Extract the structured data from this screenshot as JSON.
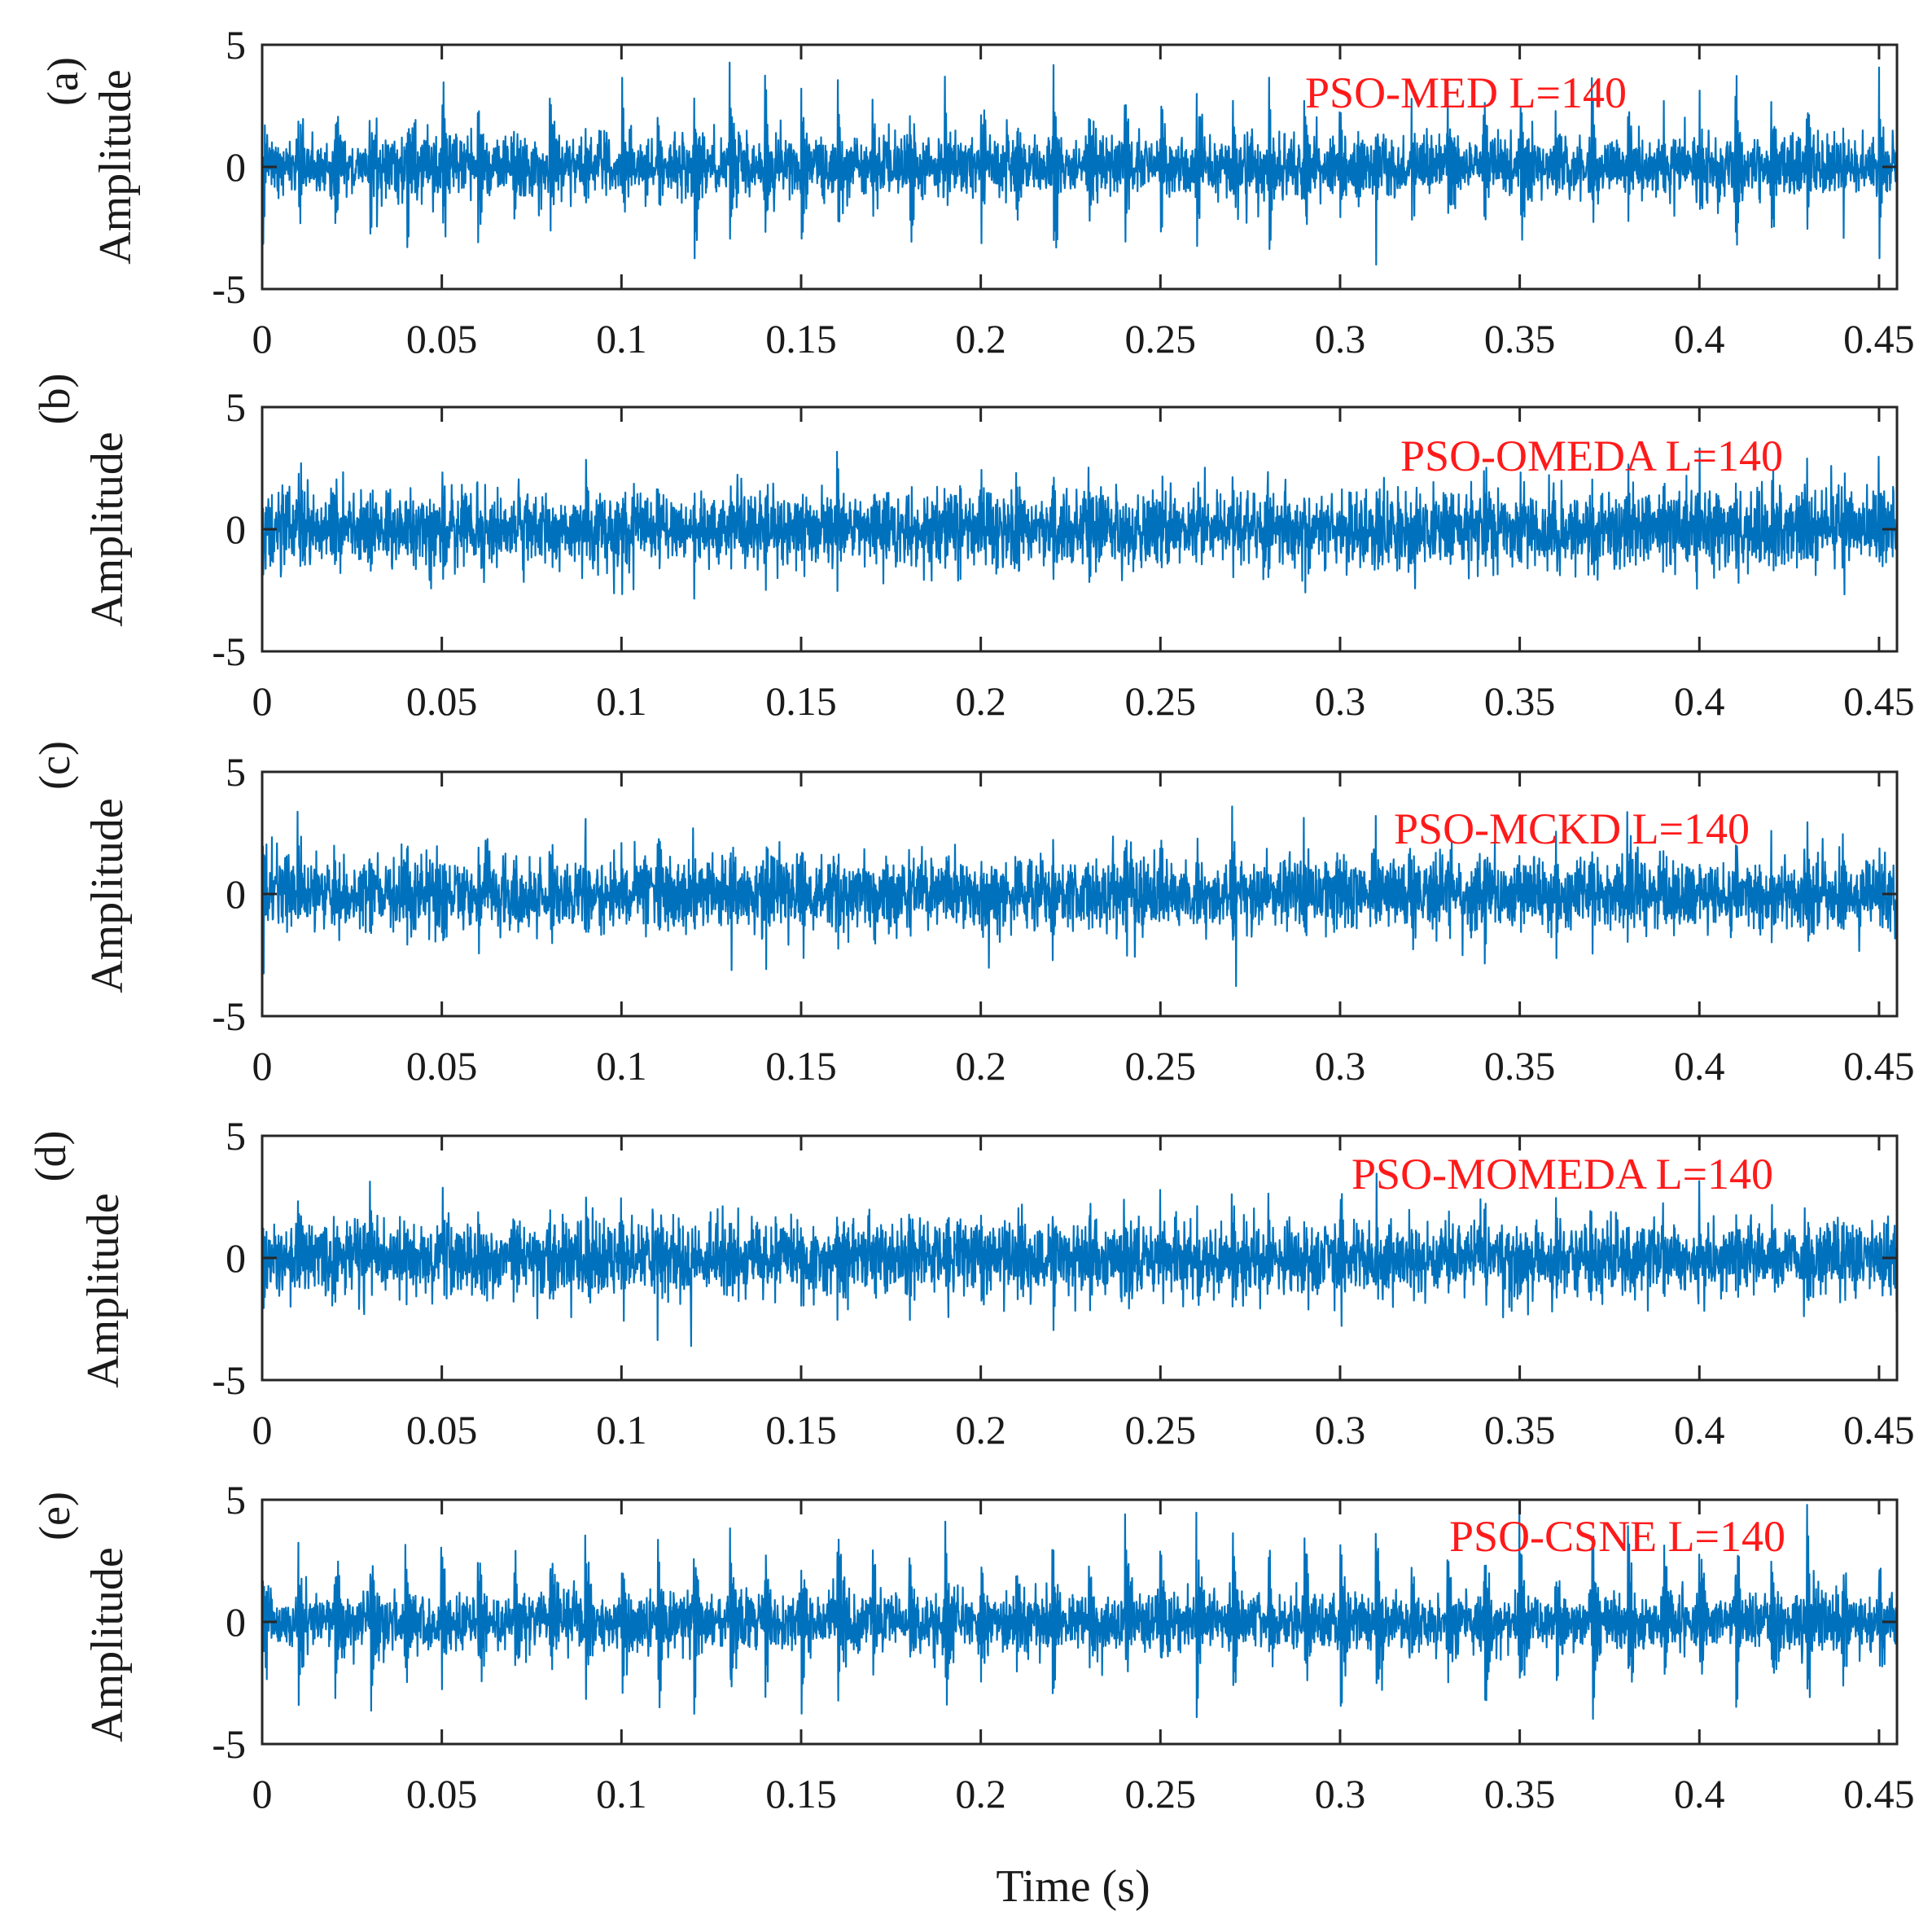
{
  "chart_data": [
    {
      "type": "line",
      "panel_label": "(a)",
      "annotation": "PSO-MED L=140",
      "ylabel": "Amplitude",
      "xlabel": "",
      "xlim": [
        0,
        0.455
      ],
      "ylim": [
        -5,
        5
      ],
      "xticks": [
        0,
        0.05,
        0.1,
        0.15,
        0.2,
        0.25,
        0.3,
        0.35,
        0.4,
        0.45
      ],
      "xtick_labels": [
        "0",
        "0.05",
        "0.1",
        "0.15",
        "0.2",
        "0.25",
        "0.3",
        "0.35",
        "0.4",
        "0.45"
      ],
      "yticks": [
        -5,
        0,
        5
      ],
      "ytick_labels": [
        "-5",
        "0",
        "5"
      ],
      "series": [
        {
          "name": "PSO-MED L=140",
          "color": "#0072bd",
          "duration_s": 0.455,
          "impulse_period_s": 0.01,
          "impulse_peak": 4.3,
          "noise_rms": 0.6,
          "decay": 0.0011
        }
      ]
    },
    {
      "type": "line",
      "panel_label": "(b)",
      "annotation": "PSO-OMEDA L=140",
      "ylabel": "Amplitude",
      "xlabel": "",
      "xlim": [
        0,
        0.455
      ],
      "ylim": [
        -5,
        5
      ],
      "xticks": [
        0,
        0.05,
        0.1,
        0.15,
        0.2,
        0.25,
        0.3,
        0.35,
        0.4,
        0.45
      ],
      "xtick_labels": [
        "0",
        "0.05",
        "0.1",
        "0.15",
        "0.2",
        "0.25",
        "0.3",
        "0.35",
        "0.4",
        "0.45"
      ],
      "yticks": [
        -5,
        0,
        5
      ],
      "ytick_labels": [
        "-5",
        "0",
        "5"
      ],
      "series": [
        {
          "name": "PSO-OMEDA L=140",
          "color": "#0072bd",
          "duration_s": 0.455,
          "impulse_period_s": 0.01,
          "impulse_peak": 2.6,
          "noise_rms": 0.75,
          "decay": 0.0008
        }
      ]
    },
    {
      "type": "line",
      "panel_label": "(c)",
      "annotation": "PSO-MCKD L=140",
      "ylabel": "Amplitude",
      "xlabel": "",
      "xlim": [
        0,
        0.455
      ],
      "ylim": [
        -5,
        5
      ],
      "xticks": [
        0,
        0.05,
        0.1,
        0.15,
        0.2,
        0.25,
        0.3,
        0.35,
        0.4,
        0.45
      ],
      "xtick_labels": [
        "0",
        "0.05",
        "0.1",
        "0.15",
        "0.2",
        "0.25",
        "0.3",
        "0.35",
        "0.4",
        "0.45"
      ],
      "yticks": [
        -5,
        0,
        5
      ],
      "ytick_labels": [
        "-5",
        "0",
        "5"
      ],
      "series": [
        {
          "name": "PSO-MCKD L=140",
          "color": "#0072bd",
          "duration_s": 0.455,
          "impulse_period_s": 0.01,
          "impulse_peak": 2.9,
          "noise_rms": 0.72,
          "decay": 0.0008
        }
      ]
    },
    {
      "type": "line",
      "panel_label": "(d)",
      "annotation": "PSO-MOMEDA L=140",
      "ylabel": "Amplitude",
      "xlabel": "",
      "xlim": [
        0,
        0.455
      ],
      "ylim": [
        -5,
        5
      ],
      "xticks": [
        0,
        0.05,
        0.1,
        0.15,
        0.2,
        0.25,
        0.3,
        0.35,
        0.4,
        0.45
      ],
      "xtick_labels": [
        "0",
        "0.05",
        "0.1",
        "0.15",
        "0.2",
        "0.25",
        "0.3",
        "0.35",
        "0.4",
        "0.45"
      ],
      "yticks": [
        -5,
        0,
        5
      ],
      "ytick_labels": [
        "-5",
        "0",
        "5"
      ],
      "series": [
        {
          "name": "PSO-MOMEDA L=140",
          "color": "#0072bd",
          "duration_s": 0.455,
          "impulse_period_s": 0.01,
          "impulse_peak": 2.7,
          "noise_rms": 0.74,
          "decay": 0.0008
        }
      ]
    },
    {
      "type": "line",
      "panel_label": "(e)",
      "annotation": "PSO-CSNE L=140",
      "ylabel": "Amplitude",
      "xlabel": "Time (s)",
      "xlim": [
        0,
        0.455
      ],
      "ylim": [
        -5,
        5
      ],
      "xticks": [
        0,
        0.05,
        0.1,
        0.15,
        0.2,
        0.25,
        0.3,
        0.35,
        0.4,
        0.45
      ],
      "xtick_labels": [
        "0",
        "0.05",
        "0.1",
        "0.15",
        "0.2",
        "0.25",
        "0.3",
        "0.35",
        "0.4",
        "0.45"
      ],
      "yticks": [
        -5,
        0,
        5
      ],
      "ytick_labels": [
        "-5",
        "0",
        "5"
      ],
      "series": [
        {
          "name": "PSO-CSNE L=140",
          "color": "#0072bd",
          "duration_s": 0.455,
          "impulse_period_s": 0.01,
          "impulse_peak": 4.6,
          "noise_rms": 0.55,
          "decay": 0.0013
        }
      ]
    }
  ]
}
